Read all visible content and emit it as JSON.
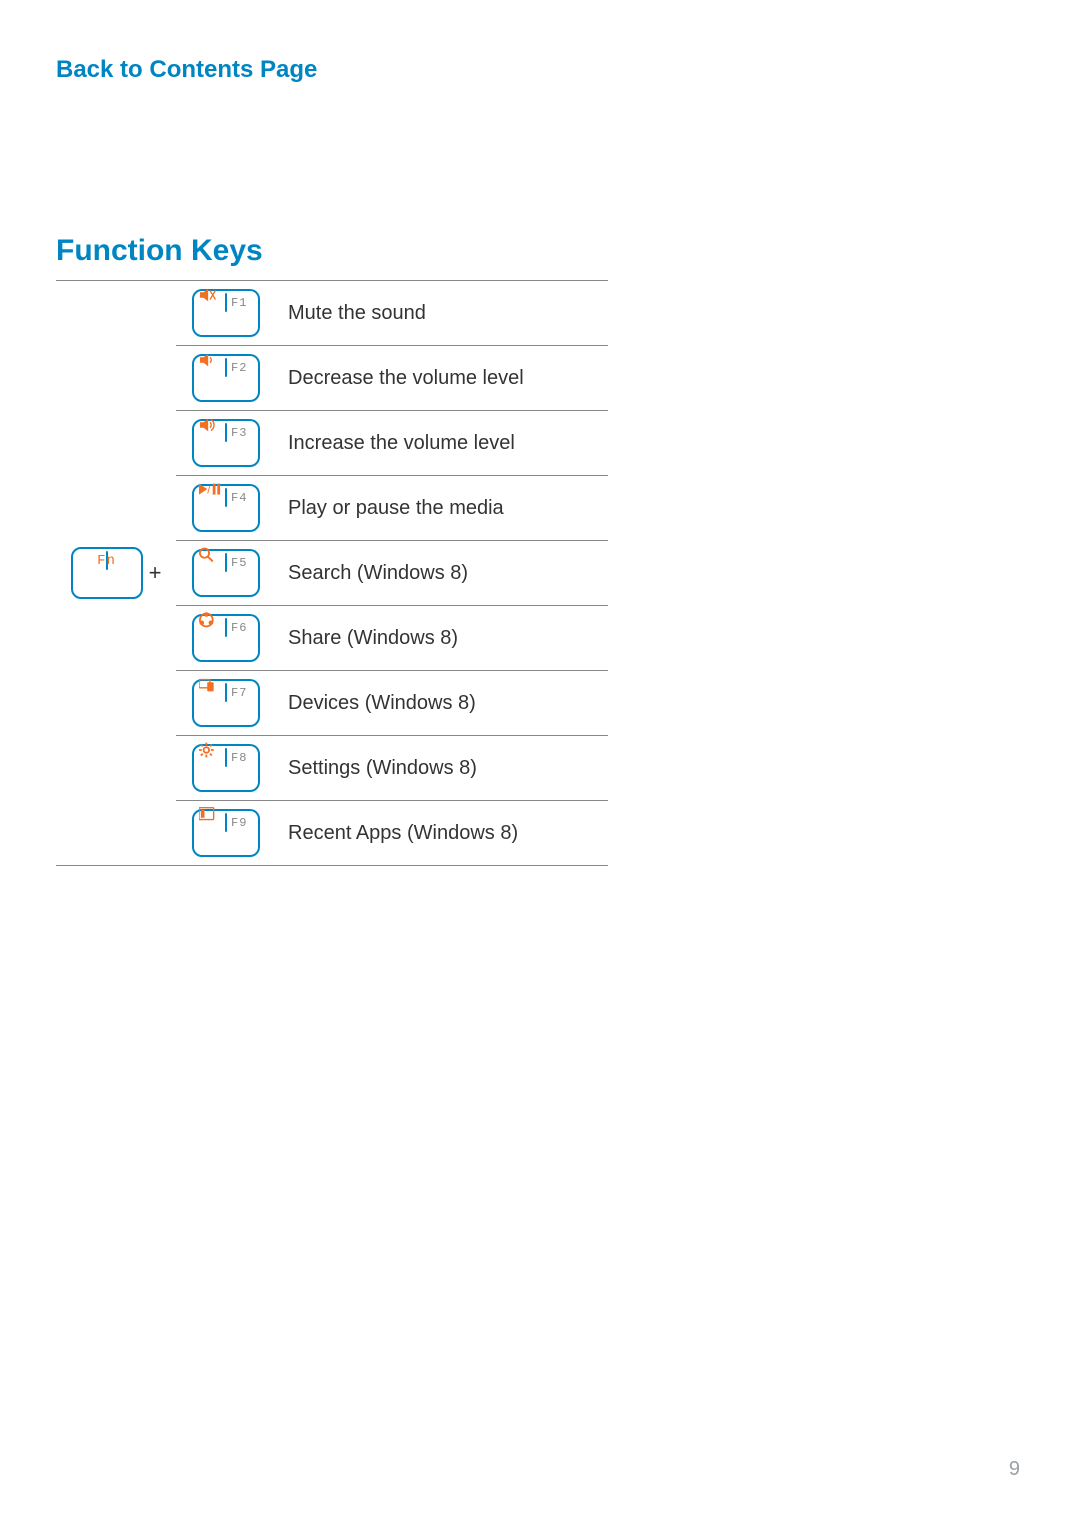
{
  "colors": {
    "link": "#0085c3",
    "heading": "#0085c3",
    "key_border": "#0085c3",
    "key_label": "#888888",
    "key_glyph": "#f36f21",
    "text": "#333333",
    "page_bg": "#ffffff",
    "rule": "#888888",
    "page_number": "#9aa0a6"
  },
  "back_link": "Back to Contents Page",
  "section_title": "Function Keys",
  "fn_key_label": "Fn",
  "plus_symbol": "+",
  "rows": [
    {
      "key_label": "F1",
      "icon": "mute",
      "description": "Mute the sound"
    },
    {
      "key_label": "F2",
      "icon": "vol-down",
      "description": "Decrease the volume level"
    },
    {
      "key_label": "F3",
      "icon": "vol-up",
      "description": "Increase the volume level"
    },
    {
      "key_label": "F4",
      "icon": "play-pause",
      "description": "Play or pause the media"
    },
    {
      "key_label": "F5",
      "icon": "search",
      "description": "Search (Windows 8)"
    },
    {
      "key_label": "F6",
      "icon": "share",
      "description": "Share (Windows 8)"
    },
    {
      "key_label": "F7",
      "icon": "devices",
      "description": "Devices (Windows 8)"
    },
    {
      "key_label": "F8",
      "icon": "settings",
      "description": "Settings (Windows 8)"
    },
    {
      "key_label": "F9",
      "icon": "recent",
      "description": "Recent Apps (Windows 8)"
    }
  ],
  "page_number": "9"
}
